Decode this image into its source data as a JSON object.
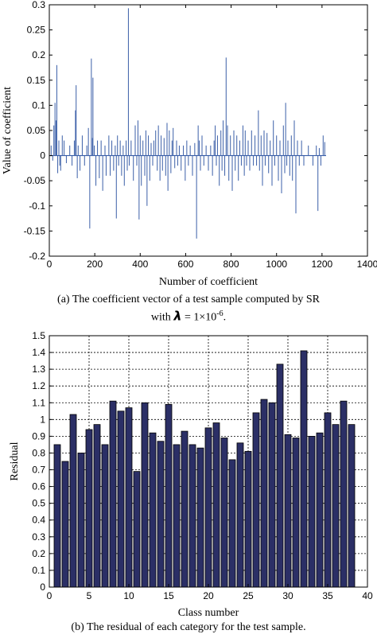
{
  "chart_data": [
    {
      "type": "line",
      "xlabel": "Number of coefficient",
      "ylabel": "Value of coefficient",
      "xlim": [
        0,
        1400
      ],
      "ylim": [
        -0.2,
        0.3
      ],
      "xticks": [
        0,
        200,
        400,
        600,
        800,
        1000,
        1200,
        1400
      ],
      "yticks": [
        -0.2,
        -0.15,
        -0.1,
        -0.05,
        0,
        0.05,
        0.1,
        0.15,
        0.2,
        0.25,
        0.3
      ],
      "ytick_labels": [
        "-0.2",
        "-0.15",
        "-0.1",
        "-0.05",
        "0",
        "0.05",
        "0.1",
        "0.15",
        "0.2",
        "0.25",
        "0.3"
      ],
      "grid": false,
      "series": [
        {
          "color": "#3b5fa8",
          "spikes": [
            [
              8,
              0.02
            ],
            [
              15,
              -0.01
            ],
            [
              20,
              0.06
            ],
            [
              25,
              0.105
            ],
            [
              30,
              0.07
            ],
            [
              33,
              0.18
            ],
            [
              37,
              -0.035
            ],
            [
              42,
              0.03
            ],
            [
              46,
              -0.02
            ],
            [
              50,
              -0.03
            ],
            [
              57,
              0.04
            ],
            [
              65,
              0.03
            ],
            [
              75,
              -0.015
            ],
            [
              90,
              0.02
            ],
            [
              100,
              -0.02
            ],
            [
              110,
              0.03
            ],
            [
              115,
              0.09
            ],
            [
              118,
              0.14
            ],
            [
              123,
              -0.045
            ],
            [
              127,
              0.02
            ],
            [
              135,
              -0.03
            ],
            [
              145,
              0.04
            ],
            [
              155,
              -0.02
            ],
            [
              165,
              0.02
            ],
            [
              172,
              0.055
            ],
            [
              178,
              -0.145
            ],
            [
              185,
              0.193
            ],
            [
              190,
              0.035
            ],
            [
              192,
              0.155
            ],
            [
              198,
              0.02
            ],
            [
              205,
              -0.06
            ],
            [
              212,
              0.03
            ],
            [
              220,
              -0.045
            ],
            [
              228,
              0.03
            ],
            [
              235,
              -0.07
            ],
            [
              245,
              0.02
            ],
            [
              250,
              -0.04
            ],
            [
              262,
              0.04
            ],
            [
              268,
              -0.04
            ],
            [
              275,
              0.03
            ],
            [
              283,
              -0.03
            ],
            [
              290,
              0.02
            ],
            [
              295,
              -0.125
            ],
            [
              300,
              0.04
            ],
            [
              305,
              -0.02
            ],
            [
              312,
              0.03
            ],
            [
              318,
              -0.04
            ],
            [
              325,
              0.02
            ],
            [
              330,
              -0.06
            ],
            [
              338,
              0.03
            ],
            [
              343,
              -0.03
            ],
            [
              348,
              0.293
            ],
            [
              352,
              -0.02
            ],
            [
              360,
              0.03
            ],
            [
              370,
              -0.05
            ],
            [
              378,
              0.06
            ],
            [
              385,
              -0.02
            ],
            [
              390,
              0.07
            ],
            [
              395,
              -0.127
            ],
            [
              400,
              0.04
            ],
            [
              405,
              -0.06
            ],
            [
              412,
              0.03
            ],
            [
              420,
              -0.04
            ],
            [
              425,
              0.05
            ],
            [
              430,
              -0.1
            ],
            [
              436,
              0.04
            ],
            [
              442,
              -0.05
            ],
            [
              448,
              0.025
            ],
            [
              455,
              -0.02
            ],
            [
              460,
              0.03
            ],
            [
              468,
              0.05
            ],
            [
              475,
              -0.03
            ],
            [
              480,
              0.06
            ],
            [
              487,
              -0.05
            ],
            [
              492,
              0.04
            ],
            [
              498,
              -0.03
            ],
            [
              505,
              0.035
            ],
            [
              512,
              -0.04
            ],
            [
              518,
              0.065
            ],
            [
              522,
              -0.07
            ],
            [
              528,
              0.05
            ],
            [
              535,
              -0.035
            ],
            [
              540,
              0.03
            ],
            [
              545,
              0.055
            ],
            [
              552,
              -0.025
            ],
            [
              560,
              0.03
            ],
            [
              565,
              -0.02
            ],
            [
              572,
              0.02
            ],
            [
              580,
              -0.03
            ],
            [
              590,
              0.02
            ],
            [
              598,
              -0.05
            ],
            [
              605,
              0.03
            ],
            [
              612,
              -0.02
            ],
            [
              620,
              0.02
            ],
            [
              630,
              -0.04
            ],
            [
              640,
              0.025
            ],
            [
              648,
              -0.165
            ],
            [
              655,
              0.06
            ],
            [
              660,
              0.03
            ],
            [
              665,
              -0.03
            ],
            [
              672,
              0.04
            ],
            [
              680,
              -0.02
            ],
            [
              690,
              0.02
            ],
            [
              700,
              -0.03
            ],
            [
              710,
              0.02
            ],
            [
              718,
              -0.04
            ],
            [
              725,
              0.03
            ],
            [
              730,
              0.06
            ],
            [
              735,
              -0.02
            ],
            [
              740,
              0.04
            ],
            [
              748,
              -0.06
            ],
            [
              755,
              0.05
            ],
            [
              760,
              -0.03
            ],
            [
              765,
              0.07
            ],
            [
              772,
              -0.04
            ],
            [
              778,
              0.195
            ],
            [
              784,
              0.06
            ],
            [
              790,
              -0.05
            ],
            [
              797,
              0.04
            ],
            [
              805,
              -0.07
            ],
            [
              812,
              0.05
            ],
            [
              818,
              -0.03
            ],
            [
              825,
              0.04
            ],
            [
              832,
              -0.05
            ],
            [
              838,
              0.03
            ],
            [
              845,
              -0.02
            ],
            [
              852,
              0.06
            ],
            [
              858,
              -0.04
            ],
            [
              862,
              0.05
            ],
            [
              868,
              -0.02
            ],
            [
              875,
              0.03
            ],
            [
              882,
              -0.03
            ],
            [
              890,
              0.05
            ],
            [
              898,
              -0.02
            ],
            [
              905,
              0.04
            ],
            [
              912,
              -0.02
            ],
            [
              920,
              0.09
            ],
            [
              925,
              -0.03
            ],
            [
              932,
              0.04
            ],
            [
              938,
              -0.06
            ],
            [
              945,
              0.05
            ],
            [
              950,
              -0.02
            ],
            [
              958,
              0.045
            ],
            [
              965,
              -0.035
            ],
            [
              972,
              0.03
            ],
            [
              980,
              -0.06
            ],
            [
              986,
              0.07
            ],
            [
              992,
              -0.02
            ],
            [
              1000,
              0.04
            ],
            [
              1008,
              -0.05
            ],
            [
              1015,
              0.03
            ],
            [
              1022,
              -0.075
            ],
            [
              1030,
              0.06
            ],
            [
              1036,
              -0.035
            ],
            [
              1040,
              0.105
            ],
            [
              1045,
              -0.02
            ],
            [
              1050,
              0.03
            ],
            [
              1058,
              -0.04
            ],
            [
              1065,
              0.04
            ],
            [
              1070,
              -0.05
            ],
            [
              1078,
              0.07
            ],
            [
              1085,
              -0.115
            ],
            [
              1092,
              0.03
            ],
            [
              1100,
              -0.02
            ],
            [
              1110,
              0.03
            ],
            [
              1120,
              -0.02
            ],
            [
              1140,
              0.02
            ],
            [
              1160,
              -0.02
            ],
            [
              1175,
              0.02
            ],
            [
              1182,
              -0.11
            ],
            [
              1188,
              0.015
            ],
            [
              1195,
              -0.02
            ],
            [
              1205,
              0.04
            ],
            [
              1212,
              0.027
            ]
          ]
        }
      ]
    },
    {
      "type": "bar",
      "xlabel": "Class number",
      "ylabel": "Residual",
      "xlim": [
        0,
        40
      ],
      "ylim": [
        0,
        1.5
      ],
      "xticks": [
        0,
        5,
        10,
        15,
        20,
        25,
        30,
        35,
        40
      ],
      "yticks": [
        0,
        0.1,
        0.2,
        0.3,
        0.4,
        0.5,
        0.6,
        0.7,
        0.8,
        0.9,
        1,
        1.1,
        1.2,
        1.3,
        1.4,
        1.5
      ],
      "ytick_labels": [
        "0",
        "0.1",
        "0.2",
        "0.3",
        "0.4",
        "0.5",
        "0.6",
        "0.7",
        "0.8",
        "0.9",
        "1",
        "1.1",
        "1.2",
        "1.3",
        "1.4",
        "1.5"
      ],
      "grid": true,
      "color": "#2b2f66",
      "categories": [
        1,
        2,
        3,
        4,
        5,
        6,
        7,
        8,
        9,
        10,
        11,
        12,
        13,
        14,
        15,
        16,
        17,
        18,
        19,
        20,
        21,
        22,
        23,
        24,
        25,
        26,
        27,
        28,
        29,
        30,
        31,
        32,
        33,
        34,
        35,
        36,
        37,
        38
      ],
      "values": [
        0.85,
        0.75,
        1.03,
        0.8,
        0.94,
        0.97,
        0.85,
        1.11,
        1.05,
        1.07,
        0.69,
        1.1,
        0.92,
        0.87,
        1.09,
        0.85,
        0.93,
        0.85,
        0.83,
        0.95,
        0.98,
        0.89,
        0.76,
        0.86,
        0.81,
        1.04,
        1.12,
        1.1,
        1.33,
        0.91,
        0.89,
        1.41,
        0.9,
        0.92,
        1.04,
        0.97,
        1.11,
        0.97
      ]
    }
  ],
  "captions": {
    "a_line1": "(a) The coefficient vector of a test sample computed by SR",
    "a_with": "with",
    "a_lambda": "λ",
    "a_equation": "= 1×10",
    "a_exponent": "-6",
    "a_end": ".",
    "b": "(b)  The residual of each category for the test sample."
  }
}
